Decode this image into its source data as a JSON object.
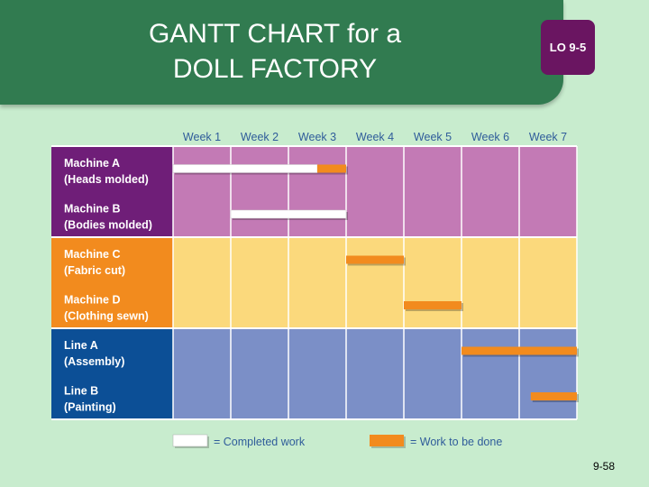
{
  "slide": {
    "title_line1": "GANTT CHART for a",
    "title_line2": "DOLL FACTORY",
    "lo_badge": "LO 9-5",
    "page_number": "9-58"
  },
  "colors": {
    "background": "#c8ecce",
    "header": "#317b50",
    "badge": "#6a1561",
    "week_label": "#2f5c9a",
    "completed": "#ffffff",
    "to_be_done": "#f28b1e"
  },
  "chart_data": {
    "type": "gantt",
    "title": "",
    "x": [
      "Week 1",
      "Week 2",
      "Week 3",
      "Week 4",
      "Week 5",
      "Week 6",
      "Week 7"
    ],
    "groups": [
      {
        "color": "#6f1e78",
        "fill": "#c37ab5",
        "rows": [
          {
            "label1": "Machine A",
            "label2": "(Heads molded)"
          },
          {
            "label1": "Machine B",
            "label2": "(Bodies molded)"
          }
        ]
      },
      {
        "color": "#f28b1e",
        "fill": "#fbd97c",
        "rows": [
          {
            "label1": "Machine C",
            "label2": "(Fabric cut)"
          },
          {
            "label1": "Machine D",
            "label2": "(Clothing sewn)"
          }
        ]
      },
      {
        "color": "#0c4f96",
        "fill": "#7b8fc7",
        "rows": [
          {
            "label1": "Line A",
            "label2": "(Assembly)"
          },
          {
            "label1": "Line B",
            "label2": "(Painting)"
          }
        ]
      }
    ],
    "tasks": [
      {
        "row": 0,
        "start": 0,
        "end": 2.5,
        "status": "completed"
      },
      {
        "row": 0,
        "start": 2.5,
        "end": 3.0,
        "status": "to_be_done"
      },
      {
        "row": 1,
        "start": 1.0,
        "end": 3.0,
        "status": "completed"
      },
      {
        "row": 2,
        "start": 3.0,
        "end": 4.0,
        "status": "to_be_done"
      },
      {
        "row": 3,
        "start": 4.0,
        "end": 5.0,
        "status": "to_be_done"
      },
      {
        "row": 4,
        "start": 5.0,
        "end": 7.0,
        "status": "to_be_done"
      },
      {
        "row": 5,
        "start": 6.2,
        "end": 7.0,
        "status": "to_be_done"
      }
    ],
    "legend": [
      {
        "status": "completed",
        "label": "= Completed work"
      },
      {
        "status": "to_be_done",
        "label": "= Work to be done"
      }
    ],
    "grid": true
  }
}
